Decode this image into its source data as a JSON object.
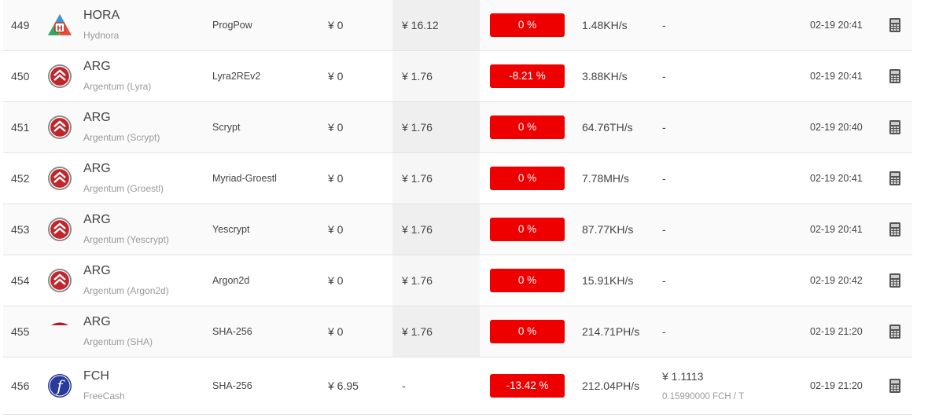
{
  "rows": [
    {
      "num": "449",
      "logo": "hydnora-logo",
      "sym": "HORA",
      "name": "Hydnora",
      "algo": "ProgPow",
      "price": "¥ 0",
      "price2": "¥ 16.12",
      "pct": "0 %",
      "hash": "1.48KH/s",
      "extra": "-",
      "time": "02-19 20:41"
    },
    {
      "num": "450",
      "logo": "argentum-logo",
      "sym": "ARG",
      "name": "Argentum (Lyra)",
      "algo": "Lyra2REv2",
      "price": "¥ 0",
      "price2": "¥ 1.76",
      "pct": "-8.21 %",
      "hash": "3.88KH/s",
      "extra": "-",
      "time": "02-19 20:41"
    },
    {
      "num": "451",
      "logo": "argentum-logo",
      "sym": "ARG",
      "name": "Argentum (Scrypt)",
      "algo": "Scrypt",
      "price": "¥ 0",
      "price2": "¥ 1.76",
      "pct": "0 %",
      "hash": "64.76TH/s",
      "extra": "-",
      "time": "02-19 20:40"
    },
    {
      "num": "452",
      "logo": "argentum-logo",
      "sym": "ARG",
      "name": "Argentum (Groestl)",
      "algo": "Myriad-Groestl",
      "price": "¥ 0",
      "price2": "¥ 1.76",
      "pct": "0 %",
      "hash": "7.78MH/s",
      "extra": "-",
      "time": "02-19 20:41"
    },
    {
      "num": "453",
      "logo": "argentum-logo",
      "sym": "ARG",
      "name": "Argentum (Yescrypt)",
      "algo": "Yescrypt",
      "price": "¥ 0",
      "price2": "¥ 1.76",
      "pct": "0 %",
      "hash": "87.77KH/s",
      "extra": "-",
      "time": "02-19 20:41"
    },
    {
      "num": "454",
      "logo": "argentum-logo",
      "sym": "ARG",
      "name": "Argentum (Argon2d)",
      "algo": "Argon2d",
      "price": "¥ 0",
      "price2": "¥ 1.76",
      "pct": "0 %",
      "hash": "15.91KH/s",
      "extra": "-",
      "time": "02-19 20:42"
    },
    {
      "num": "455",
      "logo": "argentum-partial-logo",
      "sym": "ARG",
      "name": "Argentum (SHA)",
      "algo": "SHA-256",
      "price": "¥ 0",
      "price2": "¥ 1.76",
      "pct": "0 %",
      "hash": "214.71PH/s",
      "extra": "-",
      "time": "02-19 21:20"
    },
    {
      "num": "456",
      "logo": "freecash-logo",
      "sym": "FCH",
      "name": "FreeCash",
      "algo": "SHA-256",
      "price": "¥ 6.95",
      "price2": "-",
      "pct": "-13.42 %",
      "hash": "212.04PH/s",
      "extra": "¥ 1.1113",
      "extra_sub": "0.15990000 FCH / T",
      "time": "02-19 21:20"
    }
  ],
  "colors": {
    "negative_badge": "#ee0000",
    "row_alt": "#fafafa",
    "price_shade": "#efefef"
  },
  "icons": {
    "calculator": "calculator-icon"
  }
}
